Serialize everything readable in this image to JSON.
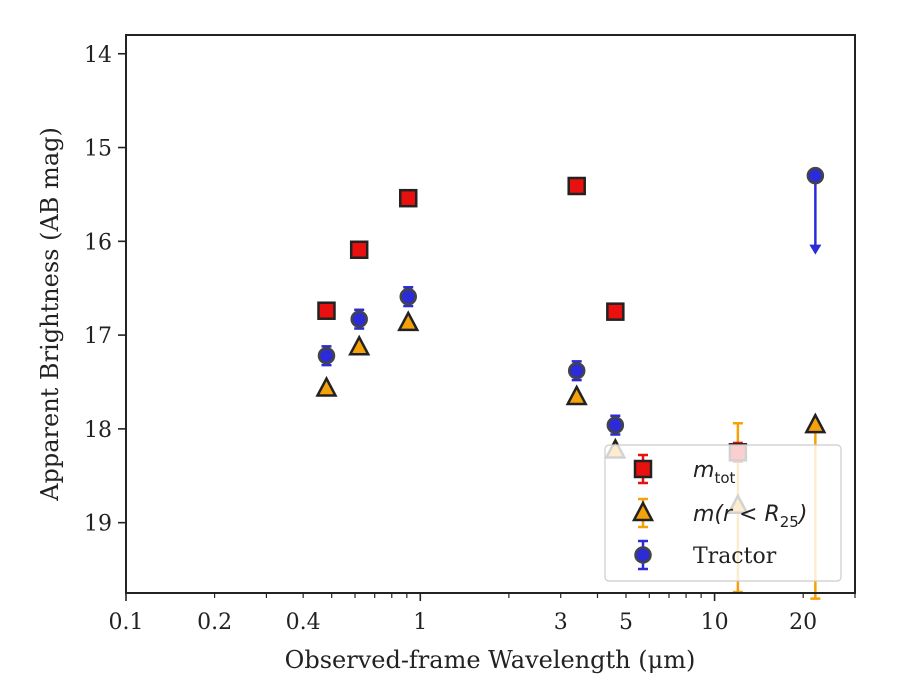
{
  "chart_data": {
    "type": "scatter",
    "xscale": "log",
    "xlim": [
      0.1,
      30
    ],
    "ylim": [
      19.75,
      13.8
    ],
    "y_inverted": true,
    "xlabel": "Observed-frame Wavelength (μm)",
    "ylabel": "Apparent Brightness (AB mag)",
    "x_ticks": [
      {
        "value": 0.1,
        "label": "0.1"
      },
      {
        "value": 0.2,
        "label": "0.2"
      },
      {
        "value": 0.4,
        "label": "0.4"
      },
      {
        "value": 1,
        "label": "1"
      },
      {
        "value": 3,
        "label": "3"
      },
      {
        "value": 5,
        "label": "5"
      },
      {
        "value": 10,
        "label": "10"
      },
      {
        "value": 20,
        "label": "20"
      }
    ],
    "y_ticks": [
      {
        "value": 14,
        "label": "14"
      },
      {
        "value": 15,
        "label": "15"
      },
      {
        "value": 16,
        "label": "16"
      },
      {
        "value": 17,
        "label": "17"
      },
      {
        "value": 18,
        "label": "18"
      },
      {
        "value": 19,
        "label": "19"
      }
    ],
    "legend_position": "bottom-right",
    "series": [
      {
        "name": "m_tot",
        "legend_base": "m",
        "legend_sub": "tot",
        "marker": "square",
        "color": "#e8110f",
        "edge": "#222222",
        "errcolor": "#e8110f",
        "points": [
          {
            "x": 0.48,
            "y": 16.74,
            "err": 0.05
          },
          {
            "x": 0.62,
            "y": 16.09,
            "err": 0.05
          },
          {
            "x": 0.91,
            "y": 15.54,
            "err": 0.05
          },
          {
            "x": 3.4,
            "y": 15.41,
            "err": 0.04
          },
          {
            "x": 4.6,
            "y": 16.75,
            "err": 0.05
          },
          {
            "x": 12.0,
            "y": 18.25,
            "err": 0.1
          }
        ]
      },
      {
        "name": "m(r < R_25)",
        "legend_base": "m(r < R",
        "legend_sub": "25",
        "legend_tail": ")",
        "marker": "triangle",
        "color": "#f5a10a",
        "edge": "#222222",
        "errcolor": "#f5a10a",
        "points": [
          {
            "x": 0.48,
            "y": 17.57,
            "err": 0.02
          },
          {
            "x": 0.62,
            "y": 17.13,
            "err": 0.02
          },
          {
            "x": 0.91,
            "y": 16.87,
            "err": 0.02
          },
          {
            "x": 3.4,
            "y": 17.66,
            "err": 0.02
          },
          {
            "x": 4.6,
            "y": 18.23,
            "err": 0.02
          },
          {
            "x": 12.0,
            "y": 18.82,
            "err_up": 0.88,
            "err_down": 0.92
          },
          {
            "x": 22.0,
            "y": 17.96,
            "err_up": 0.0,
            "err_down": 1.85
          }
        ]
      },
      {
        "name": "Tractor",
        "marker": "circle",
        "color": "#2b2bd9",
        "edge": "#444444",
        "errcolor": "#2b2bd9",
        "points": [
          {
            "x": 0.48,
            "y": 17.22,
            "err": 0.1
          },
          {
            "x": 0.62,
            "y": 16.83,
            "err": 0.1
          },
          {
            "x": 0.91,
            "y": 16.59,
            "err": 0.1
          },
          {
            "x": 3.4,
            "y": 17.38,
            "err": 0.1
          },
          {
            "x": 4.6,
            "y": 17.96,
            "err": 0.1
          },
          {
            "x": 22.0,
            "y": 15.3,
            "upper_limit_to": 16.12
          }
        ]
      }
    ]
  }
}
